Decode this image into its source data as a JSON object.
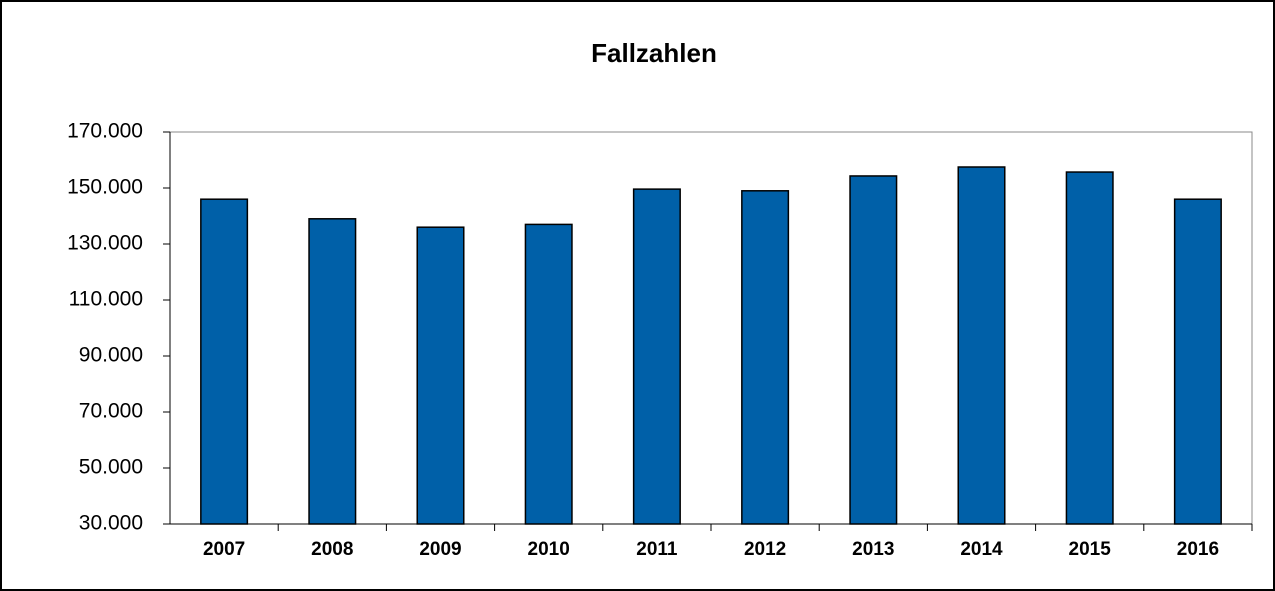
{
  "chart_data": {
    "type": "bar",
    "title": "Fallzahlen",
    "categories": [
      "2007",
      "2008",
      "2009",
      "2010",
      "2011",
      "2012",
      "2013",
      "2014",
      "2015",
      "2016"
    ],
    "values": [
      146000,
      139000,
      136000,
      137000,
      149600,
      149000,
      154300,
      157500,
      155700,
      146000
    ],
    "color": "#0060a8",
    "ylim": [
      30000,
      170000
    ],
    "yticks": [
      {
        "value": 30000,
        "label": "30.000"
      },
      {
        "value": 50000,
        "label": "50.000"
      },
      {
        "value": 70000,
        "label": "70.000"
      },
      {
        "value": 90000,
        "label": "90.000"
      },
      {
        "value": 110000,
        "label": "110.000"
      },
      {
        "value": 130000,
        "label": "130.000"
      },
      {
        "value": 150000,
        "label": "150.000"
      },
      {
        "value": 170000,
        "label": "170.000"
      }
    ],
    "grid": false
  }
}
